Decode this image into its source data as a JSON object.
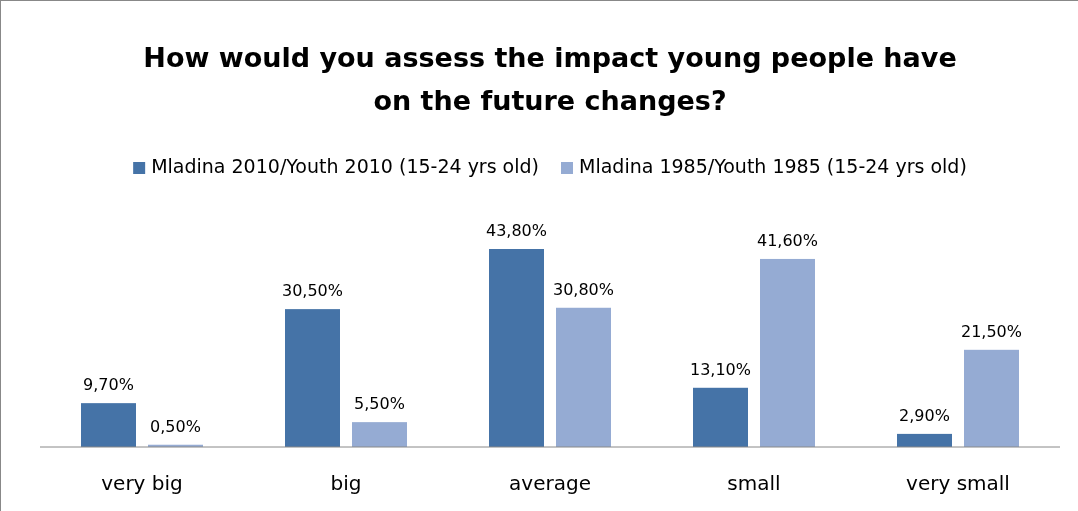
{
  "chart_data": {
    "type": "bar",
    "title": "How would you assess the impact young people have\non the future changes?",
    "categories": [
      "very big",
      "big",
      "average",
      "small",
      "very small"
    ],
    "series": [
      {
        "name": "Mladina 2010/Youth 2010  (15-24 yrs old)",
        "color": "#4573a7",
        "values": [
          9.7,
          30.5,
          43.8,
          13.1,
          2.9
        ],
        "value_labels": [
          "9,70%",
          "30,50%",
          "43,80%",
          "13,10%",
          "2,90%"
        ]
      },
      {
        "name": "Mladina 1985/Youth 1985 (15-24 yrs old)",
        "color": "#95abd3",
        "values": [
          0.5,
          5.5,
          30.8,
          41.6,
          21.5
        ],
        "value_labels": [
          "0,50%",
          "5,50%",
          "30,80%",
          "41,60%",
          "21,50%"
        ]
      }
    ],
    "legend": "top"
  }
}
